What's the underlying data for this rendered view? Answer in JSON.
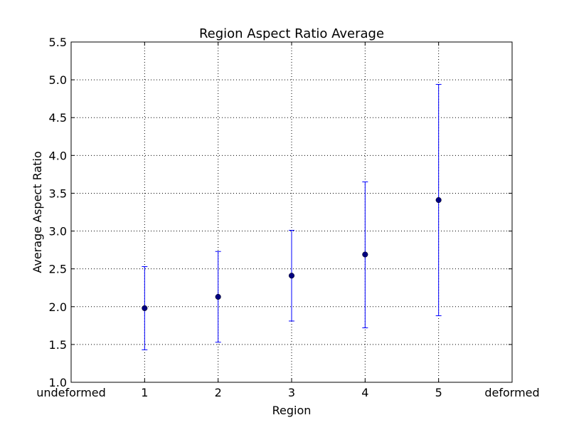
{
  "chart_data": {
    "type": "scatter",
    "title": "Region Aspect Ratio Average",
    "xlabel": "Region",
    "ylabel": "Average Aspect Ratio",
    "xlim": [
      0,
      6
    ],
    "ylim": [
      1.0,
      5.5
    ],
    "grid": true,
    "x_ticks": [
      {
        "value": 0,
        "label": "undeformed"
      },
      {
        "value": 1,
        "label": "1"
      },
      {
        "value": 2,
        "label": "2"
      },
      {
        "value": 3,
        "label": "3"
      },
      {
        "value": 4,
        "label": "4"
      },
      {
        "value": 5,
        "label": "5"
      },
      {
        "value": 6,
        "label": "deformed"
      }
    ],
    "y_ticks": [
      {
        "value": 1.0,
        "label": "1.0"
      },
      {
        "value": 1.5,
        "label": "1.5"
      },
      {
        "value": 2.0,
        "label": "2.0"
      },
      {
        "value": 2.5,
        "label": "2.5"
      },
      {
        "value": 3.0,
        "label": "3.0"
      },
      {
        "value": 3.5,
        "label": "3.5"
      },
      {
        "value": 4.0,
        "label": "4.0"
      },
      {
        "value": 4.5,
        "label": "4.5"
      },
      {
        "value": 5.0,
        "label": "5.0"
      },
      {
        "value": 5.5,
        "label": "5.5"
      }
    ],
    "points": [
      {
        "x": 1,
        "y": 1.98,
        "low": 1.43,
        "high": 2.53
      },
      {
        "x": 2,
        "y": 2.13,
        "low": 1.53,
        "high": 2.73
      },
      {
        "x": 3,
        "y": 2.41,
        "low": 1.81,
        "high": 3.01
      },
      {
        "x": 4,
        "y": 2.69,
        "low": 1.72,
        "high": 3.65
      },
      {
        "x": 5,
        "y": 3.41,
        "low": 1.88,
        "high": 4.94
      }
    ],
    "marker_color": "#000080",
    "errorbar_color": "#0000ff"
  }
}
